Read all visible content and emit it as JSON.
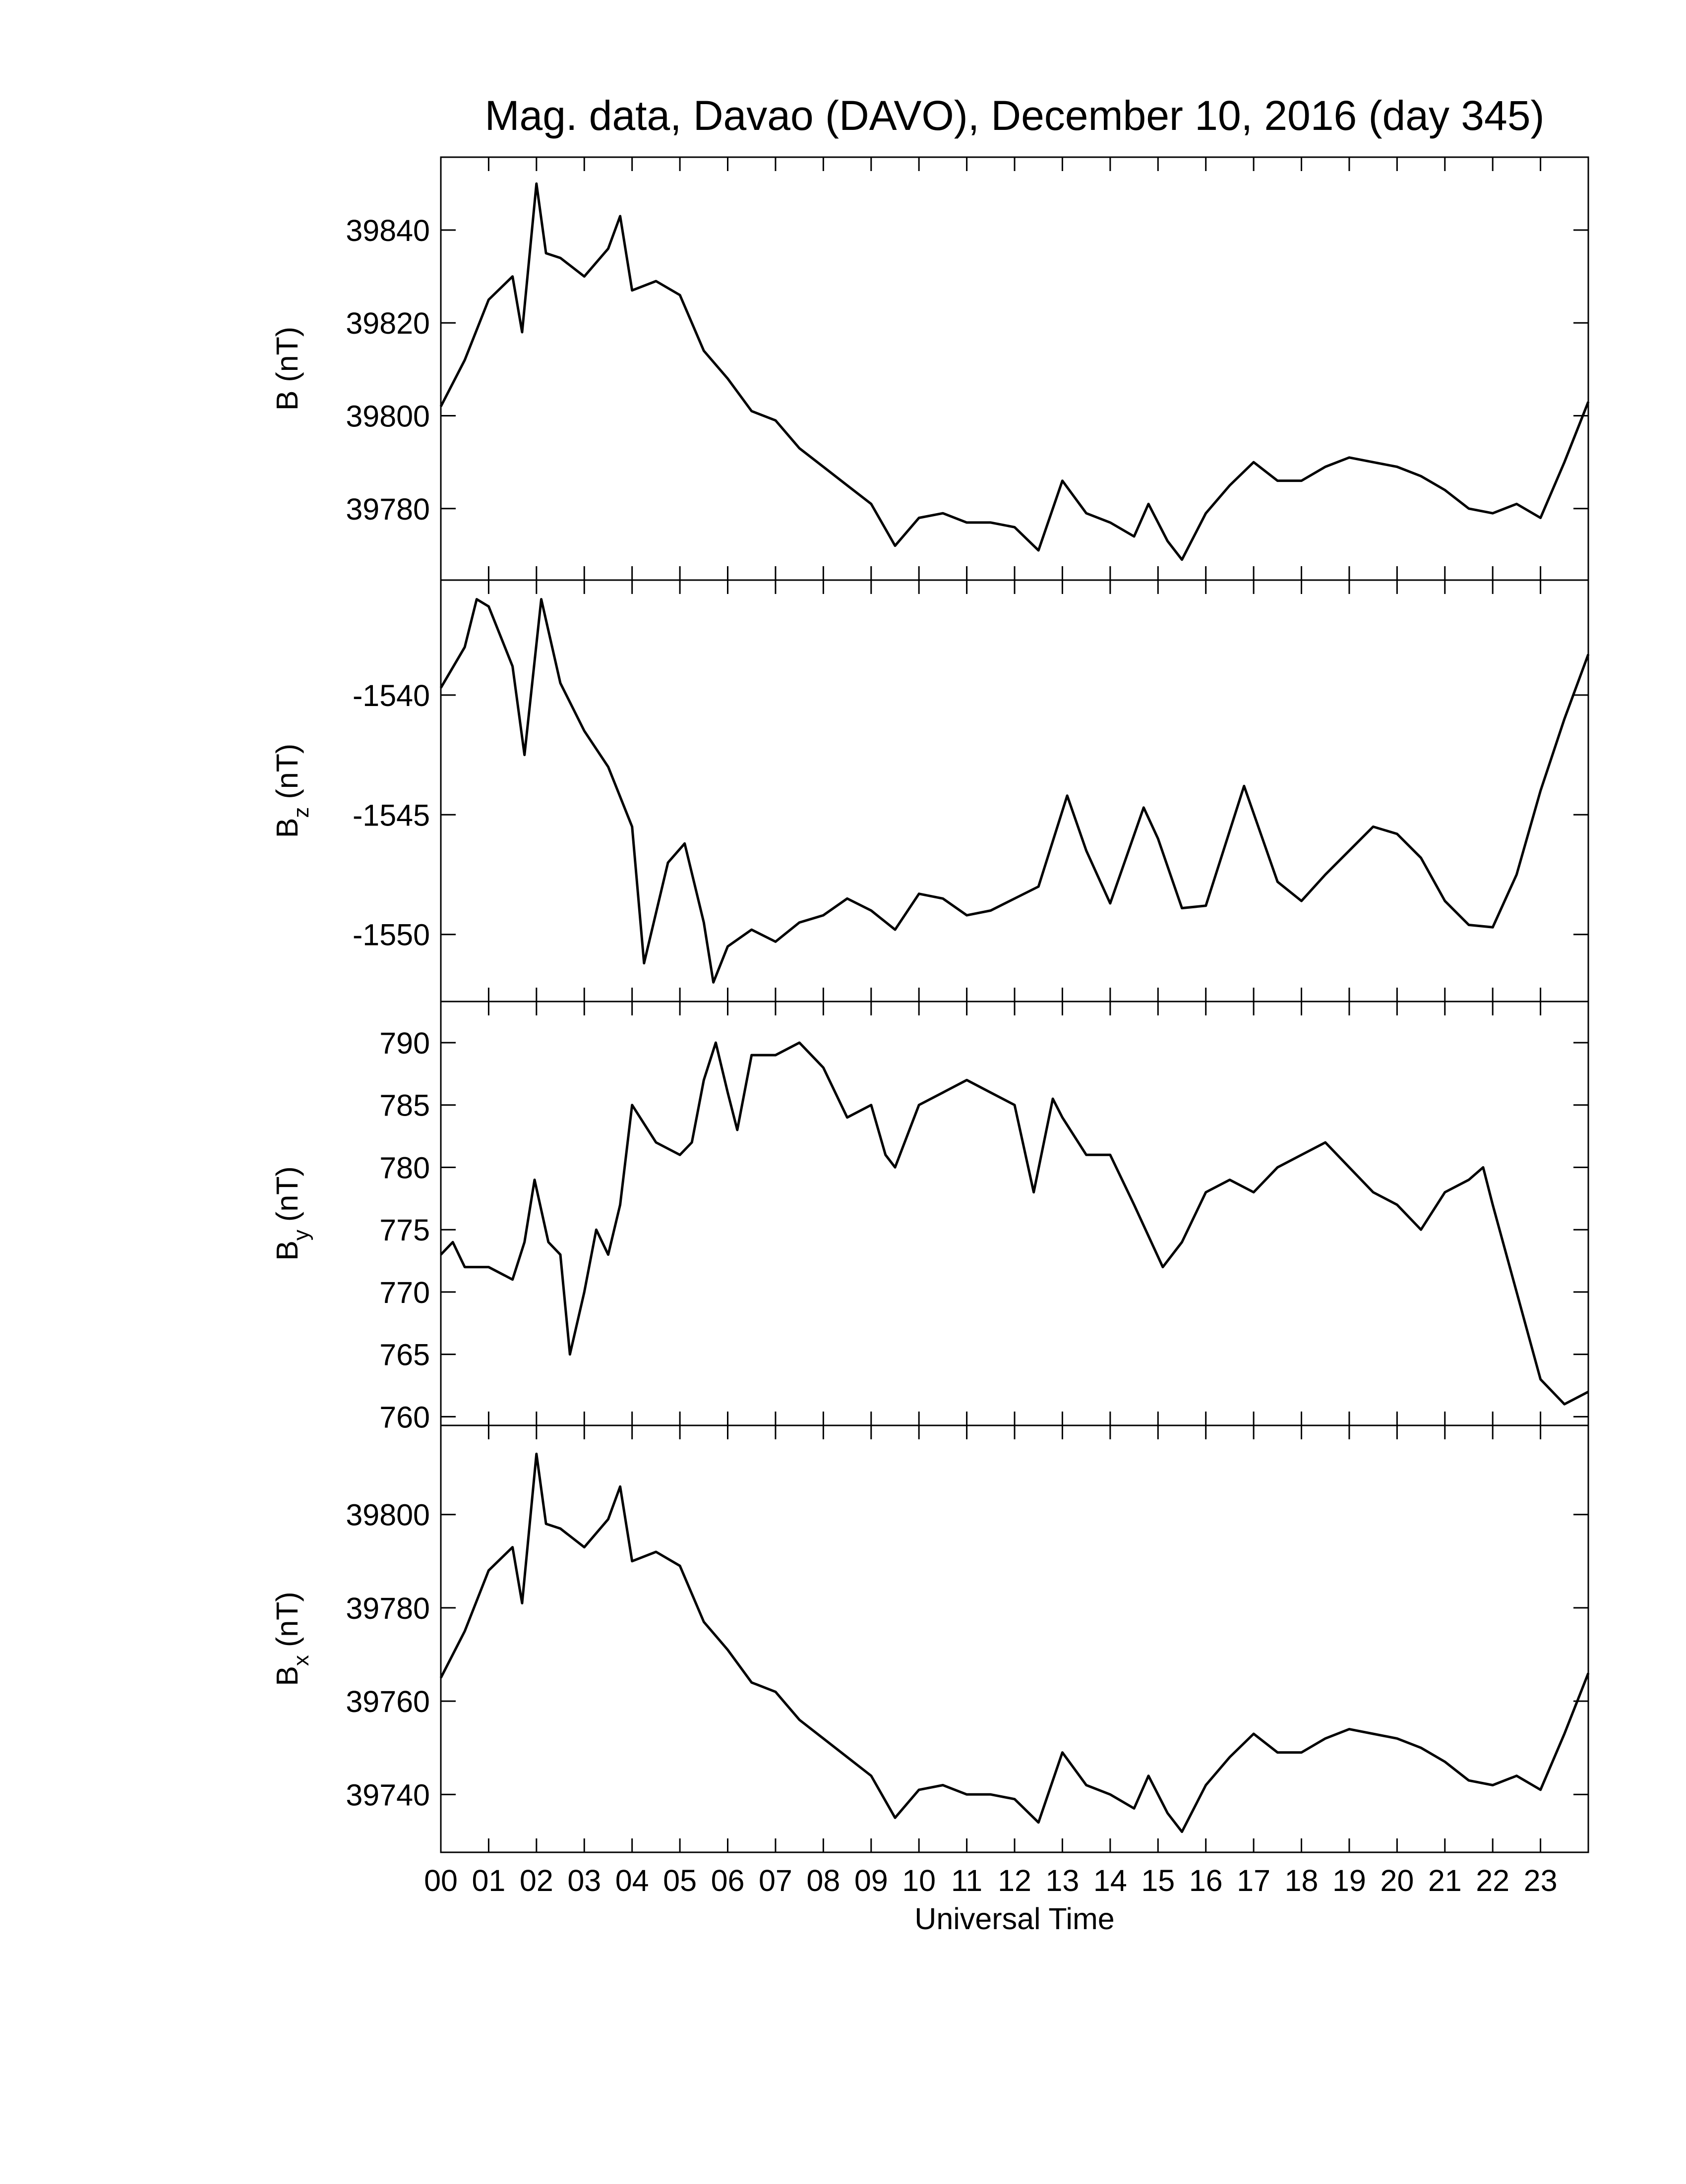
{
  "chart_data": [
    {
      "type": "line",
      "title": "Mag. data, Davao (DAVO), December 10, 2016 (day 345)",
      "ylabel": "B (nT)",
      "color": "#000000",
      "x": [
        0,
        0.5,
        1,
        1.5,
        1.7,
        2.0,
        2.2,
        2.5,
        3,
        3.5,
        3.75,
        4,
        4.5,
        5,
        5.5,
        6,
        6.5,
        7,
        7.5,
        8,
        8.5,
        9,
        9.5,
        10,
        10.5,
        11,
        11.5,
        12,
        12.5,
        13,
        13.5,
        14,
        14.5,
        14.8,
        15.2,
        15.5,
        16,
        16.5,
        17,
        17.5,
        18,
        18.5,
        19,
        19.5,
        20,
        20.5,
        21,
        21.5,
        22,
        22.5,
        23,
        23.5,
        24
      ],
      "values": [
        39802,
        39812,
        39825,
        39830,
        39818,
        39850,
        39835,
        39834,
        39830,
        39836,
        39843,
        39827,
        39829,
        39826,
        39814,
        39808,
        39801,
        39799,
        39793,
        39789,
        39785,
        39781,
        39772,
        39778,
        39779,
        39777,
        39777,
        39776,
        39771,
        39786,
        39779,
        39777,
        39774,
        39781,
        39773,
        39769,
        39779,
        39785,
        39790,
        39786,
        39786,
        39789,
        39791,
        39790,
        39789,
        39787,
        39784,
        39780,
        39779,
        39781,
        39778,
        39790,
        39803
      ],
      "xlim": [
        0,
        24
      ],
      "xticks": [
        0,
        1,
        2,
        3,
        4,
        5,
        6,
        7,
        8,
        9,
        10,
        11,
        12,
        13,
        14,
        15,
        16,
        17,
        18,
        19,
        20,
        21,
        22,
        23
      ],
      "ylim": [
        39764.6,
        39855.7
      ],
      "yticks": [
        39780,
        39800,
        39820,
        39840
      ]
    },
    {
      "type": "line",
      "ylabel": {
        "symbol": "B",
        "subscript": "z",
        "unit": "(nT)"
      },
      "color": "#000000",
      "x": [
        0,
        0.5,
        0.75,
        1.0,
        1.5,
        1.75,
        2.1,
        2.5,
        3.0,
        3.5,
        4.0,
        4.25,
        4.75,
        5.1,
        5.5,
        5.7,
        6.0,
        6.5,
        7,
        7.5,
        8,
        8.5,
        9,
        9.5,
        10,
        10.5,
        11,
        11.5,
        12,
        12.5,
        13.1,
        13.5,
        14,
        14.7,
        15,
        15.5,
        16,
        16.8,
        17.5,
        18,
        18.5,
        19,
        19.5,
        20,
        20.5,
        21,
        21.5,
        22,
        22.5,
        23,
        23.5,
        24
      ],
      "values": [
        -1539.7,
        -1538,
        -1536,
        -1536.3,
        -1538.8,
        -1542.5,
        -1536,
        -1539.5,
        -1541.5,
        -1543,
        -1545.5,
        -1551.2,
        -1547,
        -1546.2,
        -1549.5,
        -1552,
        -1550.5,
        -1549.8,
        -1550.3,
        -1549.5,
        -1549.2,
        -1548.5,
        -1549,
        -1549.8,
        -1548.3,
        -1548.5,
        -1549.2,
        -1549,
        -1548.5,
        -1548,
        -1544.2,
        -1546.5,
        -1548.7,
        -1544.7,
        -1546,
        -1548.9,
        -1548.8,
        -1543.8,
        -1547.8,
        -1548.6,
        -1547.5,
        -1546.5,
        -1545.5,
        -1545.8,
        -1546.8,
        -1548.6,
        -1549.6,
        -1549.7,
        -1547.5,
        -1544,
        -1541,
        -1538.3
      ],
      "xlim": [
        0,
        24
      ],
      "xticks": [
        0,
        1,
        2,
        3,
        4,
        5,
        6,
        7,
        8,
        9,
        10,
        11,
        12,
        13,
        14,
        15,
        16,
        17,
        18,
        19,
        20,
        21,
        22,
        23
      ],
      "ylim": [
        -1552.8,
        -1535.2
      ],
      "yticks": [
        -1550,
        -1545,
        -1540
      ]
    },
    {
      "type": "line",
      "ylabel": {
        "symbol": "B",
        "subscript": "y",
        "unit": "(nT)"
      },
      "color": "#000000",
      "x": [
        0,
        0.25,
        0.5,
        1,
        1.5,
        1.75,
        1.96,
        2.25,
        2.5,
        2.7,
        3,
        3.25,
        3.5,
        3.75,
        4,
        4.5,
        5,
        5.25,
        5.5,
        5.75,
        6,
        6.2,
        6.5,
        7,
        7.5,
        8,
        8.5,
        9,
        9.3,
        9.5,
        10,
        10.5,
        11,
        11.5,
        12,
        12.4,
        12.8,
        13,
        13.5,
        14,
        14.5,
        15.1,
        15.5,
        16,
        16.5,
        17,
        17.5,
        18,
        18.5,
        19,
        19.5,
        20,
        20.5,
        21,
        21.5,
        21.8,
        22,
        22.5,
        23,
        23.5,
        24
      ],
      "values": [
        773,
        774,
        772,
        772,
        771,
        774,
        779,
        774,
        773,
        765,
        770,
        775,
        773,
        777,
        785,
        782,
        781,
        782,
        787,
        790,
        786,
        783,
        789,
        789,
        790,
        788,
        784,
        785,
        781,
        780,
        785,
        786,
        787,
        786,
        785,
        778,
        785.5,
        784,
        781,
        781,
        777,
        772,
        774,
        778,
        779,
        778,
        780,
        781,
        782,
        780,
        778,
        777,
        775,
        778,
        779,
        780,
        777,
        770,
        763,
        761,
        762
      ],
      "xlim": [
        0,
        24
      ],
      "xticks": [
        0,
        1,
        2,
        3,
        4,
        5,
        6,
        7,
        8,
        9,
        10,
        11,
        12,
        13,
        14,
        15,
        16,
        17,
        18,
        19,
        20,
        21,
        22,
        23
      ],
      "ylim": [
        759.3,
        793.3
      ],
      "yticks": [
        760,
        765,
        770,
        775,
        780,
        785,
        790
      ]
    },
    {
      "type": "line",
      "ylabel": {
        "symbol": "B",
        "subscript": "x",
        "unit": "(nT)"
      },
      "xlabel": "Universal Time",
      "color": "#000000",
      "x": [
        0,
        0.5,
        1,
        1.5,
        1.7,
        2.0,
        2.2,
        2.5,
        3,
        3.5,
        3.75,
        4,
        4.5,
        5,
        5.5,
        6,
        6.5,
        7,
        7.5,
        8,
        8.5,
        9,
        9.5,
        10,
        10.5,
        11,
        11.5,
        12,
        12.5,
        13,
        13.5,
        14,
        14.5,
        14.8,
        15.2,
        15.5,
        16,
        16.5,
        17,
        17.5,
        18,
        18.5,
        19,
        19.5,
        20,
        20.5,
        21,
        21.5,
        22,
        22.5,
        23,
        23.5,
        24
      ],
      "values": [
        39765,
        39775,
        39788,
        39793,
        39781,
        39813,
        39798,
        39797,
        39793,
        39799,
        39806,
        39790,
        39792,
        39789,
        39777,
        39771,
        39764,
        39762,
        39756,
        39752,
        39748,
        39744,
        39735,
        39741,
        39742,
        39740,
        39740,
        39739,
        39734,
        39749,
        39742,
        39740,
        39737,
        39744,
        39736,
        39732,
        39742,
        39748,
        39753,
        39749,
        39749,
        39752,
        39754,
        39753,
        39752,
        39750,
        39747,
        39743,
        39742,
        39744,
        39741,
        39753,
        39766
      ],
      "xlim": [
        0,
        24
      ],
      "xticks": [
        {
          "value": 0,
          "label": "00"
        },
        {
          "value": 1,
          "label": "01"
        },
        {
          "value": 2,
          "label": "02"
        },
        {
          "value": 3,
          "label": "03"
        },
        {
          "value": 4,
          "label": "04"
        },
        {
          "value": 5,
          "label": "05"
        },
        {
          "value": 6,
          "label": "06"
        },
        {
          "value": 7,
          "label": "07"
        },
        {
          "value": 8,
          "label": "08"
        },
        {
          "value": 9,
          "label": "09"
        },
        {
          "value": 10,
          "label": "10"
        },
        {
          "value": 11,
          "label": "11"
        },
        {
          "value": 12,
          "label": "12"
        },
        {
          "value": 13,
          "label": "13"
        },
        {
          "value": 14,
          "label": "14"
        },
        {
          "value": 15,
          "label": "15"
        },
        {
          "value": 16,
          "label": "16"
        },
        {
          "value": 17,
          "label": "17"
        },
        {
          "value": 18,
          "label": "18"
        },
        {
          "value": 19,
          "label": "19"
        },
        {
          "value": 20,
          "label": "20"
        },
        {
          "value": 21,
          "label": "21"
        },
        {
          "value": 22,
          "label": "22"
        },
        {
          "value": 23,
          "label": "23"
        }
      ],
      "ylim": [
        39727.6,
        39819.1
      ],
      "yticks": [
        39740,
        39760,
        39780,
        39800
      ]
    }
  ]
}
